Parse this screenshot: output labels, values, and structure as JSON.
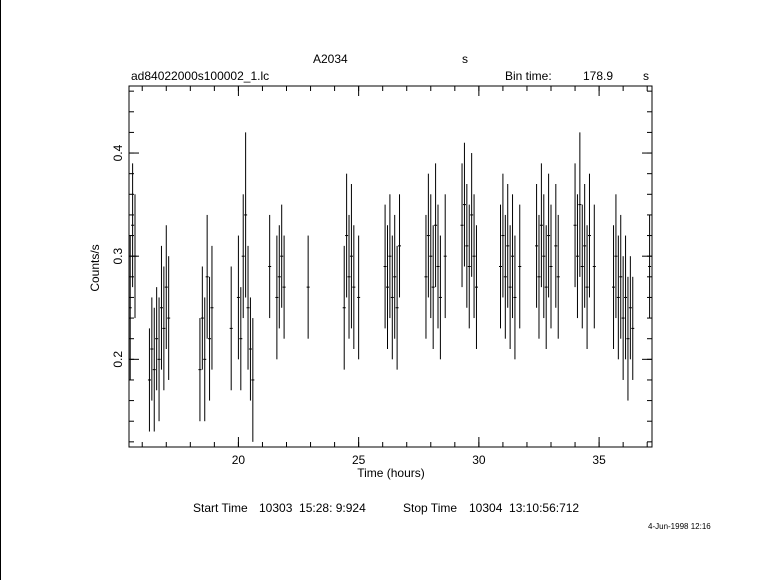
{
  "header": {
    "object": "A2034",
    "object_suffix": "s",
    "filename": "ad84022000s100002_1.lc",
    "bin_label": "Bin time:",
    "bin_value": "178.9",
    "bin_unit": "s"
  },
  "footer": {
    "start_label": "Start Time",
    "start_value": "10303  15:28: 9:924",
    "stop_label": "Stop Time",
    "stop_value": "10304  13:10:56:712",
    "date_stamp": "4-Jun-1998 12:16"
  },
  "chart_data": {
    "type": "scatter",
    "title": "A2034",
    "xlabel": "Time (hours)",
    "ylabel": "Counts/s",
    "xlim": [
      15.45,
      37.2
    ],
    "ylim": [
      0.115,
      0.465
    ],
    "xticks": [
      20,
      25,
      30,
      35
    ],
    "yticks": [
      0.2,
      0.3,
      0.4
    ],
    "grid": false,
    "series": [
      {
        "error_bars": true,
        "points": [
          {
            "x": 15.5,
            "y": 0.25,
            "err": 0.07
          },
          {
            "x": 15.6,
            "y": 0.33,
            "err": 0.06
          },
          {
            "x": 15.7,
            "y": 0.3,
            "err": 0.06
          },
          {
            "x": 16.3,
            "y": 0.18,
            "err": 0.05
          },
          {
            "x": 16.4,
            "y": 0.21,
            "err": 0.05
          },
          {
            "x": 16.5,
            "y": 0.19,
            "err": 0.06
          },
          {
            "x": 16.6,
            "y": 0.22,
            "err": 0.05
          },
          {
            "x": 16.7,
            "y": 0.2,
            "err": 0.06
          },
          {
            "x": 16.8,
            "y": 0.25,
            "err": 0.06
          },
          {
            "x": 16.9,
            "y": 0.23,
            "err": 0.06
          },
          {
            "x": 17.0,
            "y": 0.27,
            "err": 0.06
          },
          {
            "x": 17.1,
            "y": 0.24,
            "err": 0.06
          },
          {
            "x": 18.4,
            "y": 0.19,
            "err": 0.05
          },
          {
            "x": 18.5,
            "y": 0.24,
            "err": 0.05
          },
          {
            "x": 18.6,
            "y": 0.2,
            "err": 0.06
          },
          {
            "x": 18.7,
            "y": 0.28,
            "err": 0.06
          },
          {
            "x": 18.8,
            "y": 0.22,
            "err": 0.06
          },
          {
            "x": 18.9,
            "y": 0.25,
            "err": 0.06
          },
          {
            "x": 19.7,
            "y": 0.23,
            "err": 0.06
          },
          {
            "x": 20.0,
            "y": 0.26,
            "err": 0.06
          },
          {
            "x": 20.1,
            "y": 0.22,
            "err": 0.05
          },
          {
            "x": 20.2,
            "y": 0.3,
            "err": 0.06
          },
          {
            "x": 20.3,
            "y": 0.34,
            "err": 0.08
          },
          {
            "x": 20.4,
            "y": 0.25,
            "err": 0.06
          },
          {
            "x": 20.5,
            "y": 0.21,
            "err": 0.05
          },
          {
            "x": 20.6,
            "y": 0.18,
            "err": 0.06
          },
          {
            "x": 21.3,
            "y": 0.29,
            "err": 0.05
          },
          {
            "x": 21.6,
            "y": 0.26,
            "err": 0.06
          },
          {
            "x": 21.7,
            "y": 0.28,
            "err": 0.05
          },
          {
            "x": 21.8,
            "y": 0.3,
            "err": 0.05
          },
          {
            "x": 21.9,
            "y": 0.27,
            "err": 0.05
          },
          {
            "x": 22.9,
            "y": 0.27,
            "err": 0.05
          },
          {
            "x": 24.4,
            "y": 0.25,
            "err": 0.06
          },
          {
            "x": 24.5,
            "y": 0.32,
            "err": 0.06
          },
          {
            "x": 24.6,
            "y": 0.28,
            "err": 0.06
          },
          {
            "x": 24.7,
            "y": 0.3,
            "err": 0.07
          },
          {
            "x": 24.8,
            "y": 0.27,
            "err": 0.06
          },
          {
            "x": 25.0,
            "y": 0.26,
            "err": 0.06
          },
          {
            "x": 26.1,
            "y": 0.29,
            "err": 0.06
          },
          {
            "x": 26.2,
            "y": 0.27,
            "err": 0.06
          },
          {
            "x": 26.3,
            "y": 0.3,
            "err": 0.06
          },
          {
            "x": 26.4,
            "y": 0.26,
            "err": 0.06
          },
          {
            "x": 26.5,
            "y": 0.28,
            "err": 0.06
          },
          {
            "x": 26.6,
            "y": 0.25,
            "err": 0.06
          },
          {
            "x": 26.7,
            "y": 0.31,
            "err": 0.05
          },
          {
            "x": 27.8,
            "y": 0.28,
            "err": 0.06
          },
          {
            "x": 27.9,
            "y": 0.32,
            "err": 0.06
          },
          {
            "x": 28.0,
            "y": 0.3,
            "err": 0.06
          },
          {
            "x": 28.1,
            "y": 0.27,
            "err": 0.06
          },
          {
            "x": 28.2,
            "y": 0.33,
            "err": 0.06
          },
          {
            "x": 28.3,
            "y": 0.29,
            "err": 0.06
          },
          {
            "x": 28.4,
            "y": 0.26,
            "err": 0.06
          },
          {
            "x": 28.6,
            "y": 0.3,
            "err": 0.06
          },
          {
            "x": 29.3,
            "y": 0.33,
            "err": 0.06
          },
          {
            "x": 29.4,
            "y": 0.35,
            "err": 0.06
          },
          {
            "x": 29.5,
            "y": 0.31,
            "err": 0.06
          },
          {
            "x": 29.6,
            "y": 0.29,
            "err": 0.06
          },
          {
            "x": 29.7,
            "y": 0.34,
            "err": 0.06
          },
          {
            "x": 29.8,
            "y": 0.3,
            "err": 0.06
          },
          {
            "x": 29.9,
            "y": 0.27,
            "err": 0.06
          },
          {
            "x": 30.9,
            "y": 0.29,
            "err": 0.06
          },
          {
            "x": 31.0,
            "y": 0.32,
            "err": 0.06
          },
          {
            "x": 31.1,
            "y": 0.28,
            "err": 0.06
          },
          {
            "x": 31.2,
            "y": 0.31,
            "err": 0.06
          },
          {
            "x": 31.3,
            "y": 0.27,
            "err": 0.06
          },
          {
            "x": 31.4,
            "y": 0.3,
            "err": 0.06
          },
          {
            "x": 31.5,
            "y": 0.26,
            "err": 0.06
          },
          {
            "x": 31.7,
            "y": 0.29,
            "err": 0.06
          },
          {
            "x": 32.4,
            "y": 0.31,
            "err": 0.06
          },
          {
            "x": 32.5,
            "y": 0.28,
            "err": 0.06
          },
          {
            "x": 32.6,
            "y": 0.33,
            "err": 0.06
          },
          {
            "x": 32.7,
            "y": 0.3,
            "err": 0.06
          },
          {
            "x": 32.8,
            "y": 0.27,
            "err": 0.06
          },
          {
            "x": 32.9,
            "y": 0.32,
            "err": 0.06
          },
          {
            "x": 33.0,
            "y": 0.29,
            "err": 0.06
          },
          {
            "x": 33.2,
            "y": 0.31,
            "err": 0.06
          },
          {
            "x": 33.3,
            "y": 0.28,
            "err": 0.06
          },
          {
            "x": 34.0,
            "y": 0.33,
            "err": 0.06
          },
          {
            "x": 34.1,
            "y": 0.3,
            "err": 0.06
          },
          {
            "x": 34.2,
            "y": 0.35,
            "err": 0.07
          },
          {
            "x": 34.3,
            "y": 0.29,
            "err": 0.06
          },
          {
            "x": 34.4,
            "y": 0.31,
            "err": 0.06
          },
          {
            "x": 34.5,
            "y": 0.27,
            "err": 0.06
          },
          {
            "x": 34.6,
            "y": 0.32,
            "err": 0.06
          },
          {
            "x": 34.8,
            "y": 0.29,
            "err": 0.06
          },
          {
            "x": 35.6,
            "y": 0.27,
            "err": 0.06
          },
          {
            "x": 35.7,
            "y": 0.3,
            "err": 0.06
          },
          {
            "x": 35.8,
            "y": 0.26,
            "err": 0.06
          },
          {
            "x": 35.9,
            "y": 0.28,
            "err": 0.06
          },
          {
            "x": 36.0,
            "y": 0.24,
            "err": 0.06
          },
          {
            "x": 36.1,
            "y": 0.26,
            "err": 0.06
          },
          {
            "x": 36.2,
            "y": 0.22,
            "err": 0.06
          },
          {
            "x": 36.3,
            "y": 0.25,
            "err": 0.05
          },
          {
            "x": 36.4,
            "y": 0.23,
            "err": 0.05
          },
          {
            "x": 37.1,
            "y": 0.29,
            "err": 0.05
          }
        ]
      }
    ]
  }
}
